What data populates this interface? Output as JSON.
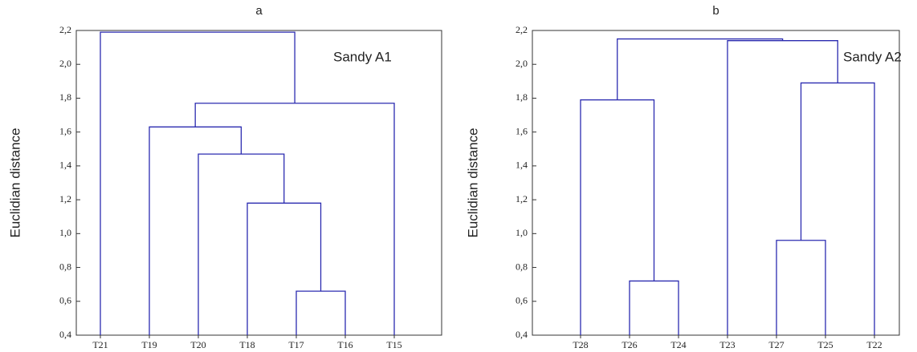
{
  "chart_data": [
    {
      "type": "dendrogram",
      "title": "a",
      "y_label": "Euclidian distance",
      "annotation": "Sandy A1",
      "categories": [
        "T21",
        "T19",
        "T20",
        "T18",
        "T17",
        "T16",
        "T15"
      ],
      "merges": [
        {
          "left": 4,
          "right": 5,
          "height": 0.66
        },
        {
          "left": 3,
          "right": 7,
          "height": 1.18
        },
        {
          "left": 2,
          "right": 8,
          "height": 1.47
        },
        {
          "left": 1,
          "right": 9,
          "height": 1.63
        },
        {
          "left": 10,
          "right": 6,
          "height": 1.77
        },
        {
          "left": 0,
          "right": 11,
          "height": 2.19
        }
      ],
      "color": "#2b2bb0",
      "ylim": [
        0.4,
        2.2
      ],
      "yticks": [
        {
          "value": 0.4,
          "label": "0,4"
        },
        {
          "value": 0.6,
          "label": "0,6"
        },
        {
          "value": 0.8,
          "label": "0,8"
        },
        {
          "value": 1.0,
          "label": "1,0"
        },
        {
          "value": 1.2,
          "label": "1,2"
        },
        {
          "value": 1.4,
          "label": "1,4"
        },
        {
          "value": 1.6,
          "label": "1,6"
        },
        {
          "value": 1.8,
          "label": "1,8"
        },
        {
          "value": 2.0,
          "label": "2,0"
        },
        {
          "value": 2.2,
          "label": "2,2"
        }
      ]
    },
    {
      "type": "dendrogram",
      "title": "b",
      "y_label": "Euclidian distance",
      "annotation": "Sandy A2",
      "categories": [
        "T28",
        "T26",
        "T24",
        "T23",
        "T27",
        "T25",
        "T22"
      ],
      "merges": [
        {
          "left": 1,
          "right": 2,
          "height": 0.72
        },
        {
          "left": 0,
          "right": 7,
          "height": 1.79
        },
        {
          "left": 4,
          "right": 5,
          "height": 0.96
        },
        {
          "left": 9,
          "right": 6,
          "height": 1.89
        },
        {
          "left": 3,
          "right": 10,
          "height": 2.14
        },
        {
          "left": 8,
          "right": 11,
          "height": 2.15
        }
      ],
      "color": "#2b2bb0",
      "ylim": [
        0.4,
        2.2
      ],
      "yticks": [
        {
          "value": 0.4,
          "label": "0,4"
        },
        {
          "value": 0.6,
          "label": "0,6"
        },
        {
          "value": 0.8,
          "label": "0,8"
        },
        {
          "value": 1.0,
          "label": "1,0"
        },
        {
          "value": 1.2,
          "label": "1,2"
        },
        {
          "value": 1.4,
          "label": "1,4"
        },
        {
          "value": 1.6,
          "label": "1,6"
        },
        {
          "value": 1.8,
          "label": "1,8"
        },
        {
          "value": 2.0,
          "label": "2,0"
        },
        {
          "value": 2.2,
          "label": "2,2"
        }
      ]
    }
  ]
}
